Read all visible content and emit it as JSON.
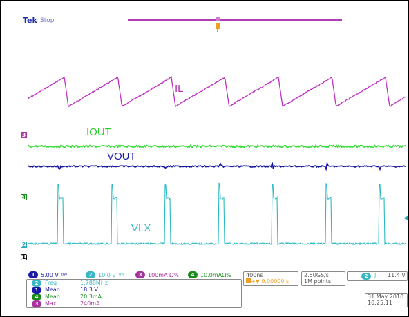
{
  "header": {
    "brand": "Tek",
    "status": "Stop"
  },
  "traces": {
    "il": {
      "label": "IL",
      "color": "#b22bb2"
    },
    "iout": {
      "label": "IOUT",
      "color": "#22cc22"
    },
    "vout": {
      "label": "VOUT",
      "color": "#1a1aa6"
    },
    "vlx": {
      "label": "VLX",
      "color": "#38b8c4"
    }
  },
  "markers": {
    "ch3": "3",
    "ch4": "4",
    "ch2": "2",
    "ch1": "1"
  },
  "channels": [
    {
      "num": "1",
      "scale": "5.00 V",
      "color": "#1a1aa6"
    },
    {
      "num": "2",
      "scale": "10.0 V",
      "color": "#38b8c4"
    },
    {
      "num": "3",
      "scale": "100mA Ω%",
      "color": "#a8329e"
    },
    {
      "num": "4",
      "scale": "10.0mAΩ%",
      "color": "#1a8c1a"
    }
  ],
  "timebase": {
    "div": "400ns",
    "delay": "0.00000 s"
  },
  "acq": {
    "rate": "2.50GS/s",
    "points": "1M points"
  },
  "trigger": {
    "channel": "2",
    "symbol": "∫",
    "level": "11.4 V"
  },
  "measurements": [
    {
      "num": "2",
      "name": "Freq",
      "value": "1.788MHz",
      "color": "#38b8c4"
    },
    {
      "num": "1",
      "name": "Mean",
      "value": "18.3 V",
      "color": "#1a1aa6"
    },
    {
      "num": "4",
      "name": "Mean",
      "value": "20.3mA",
      "color": "#1a8c1a"
    },
    {
      "num": "3",
      "name": "Max",
      "value": "240mA",
      "color": "#a8329e"
    }
  ],
  "datetime": {
    "date": "31 May 2010",
    "time": "10:25:11"
  }
}
